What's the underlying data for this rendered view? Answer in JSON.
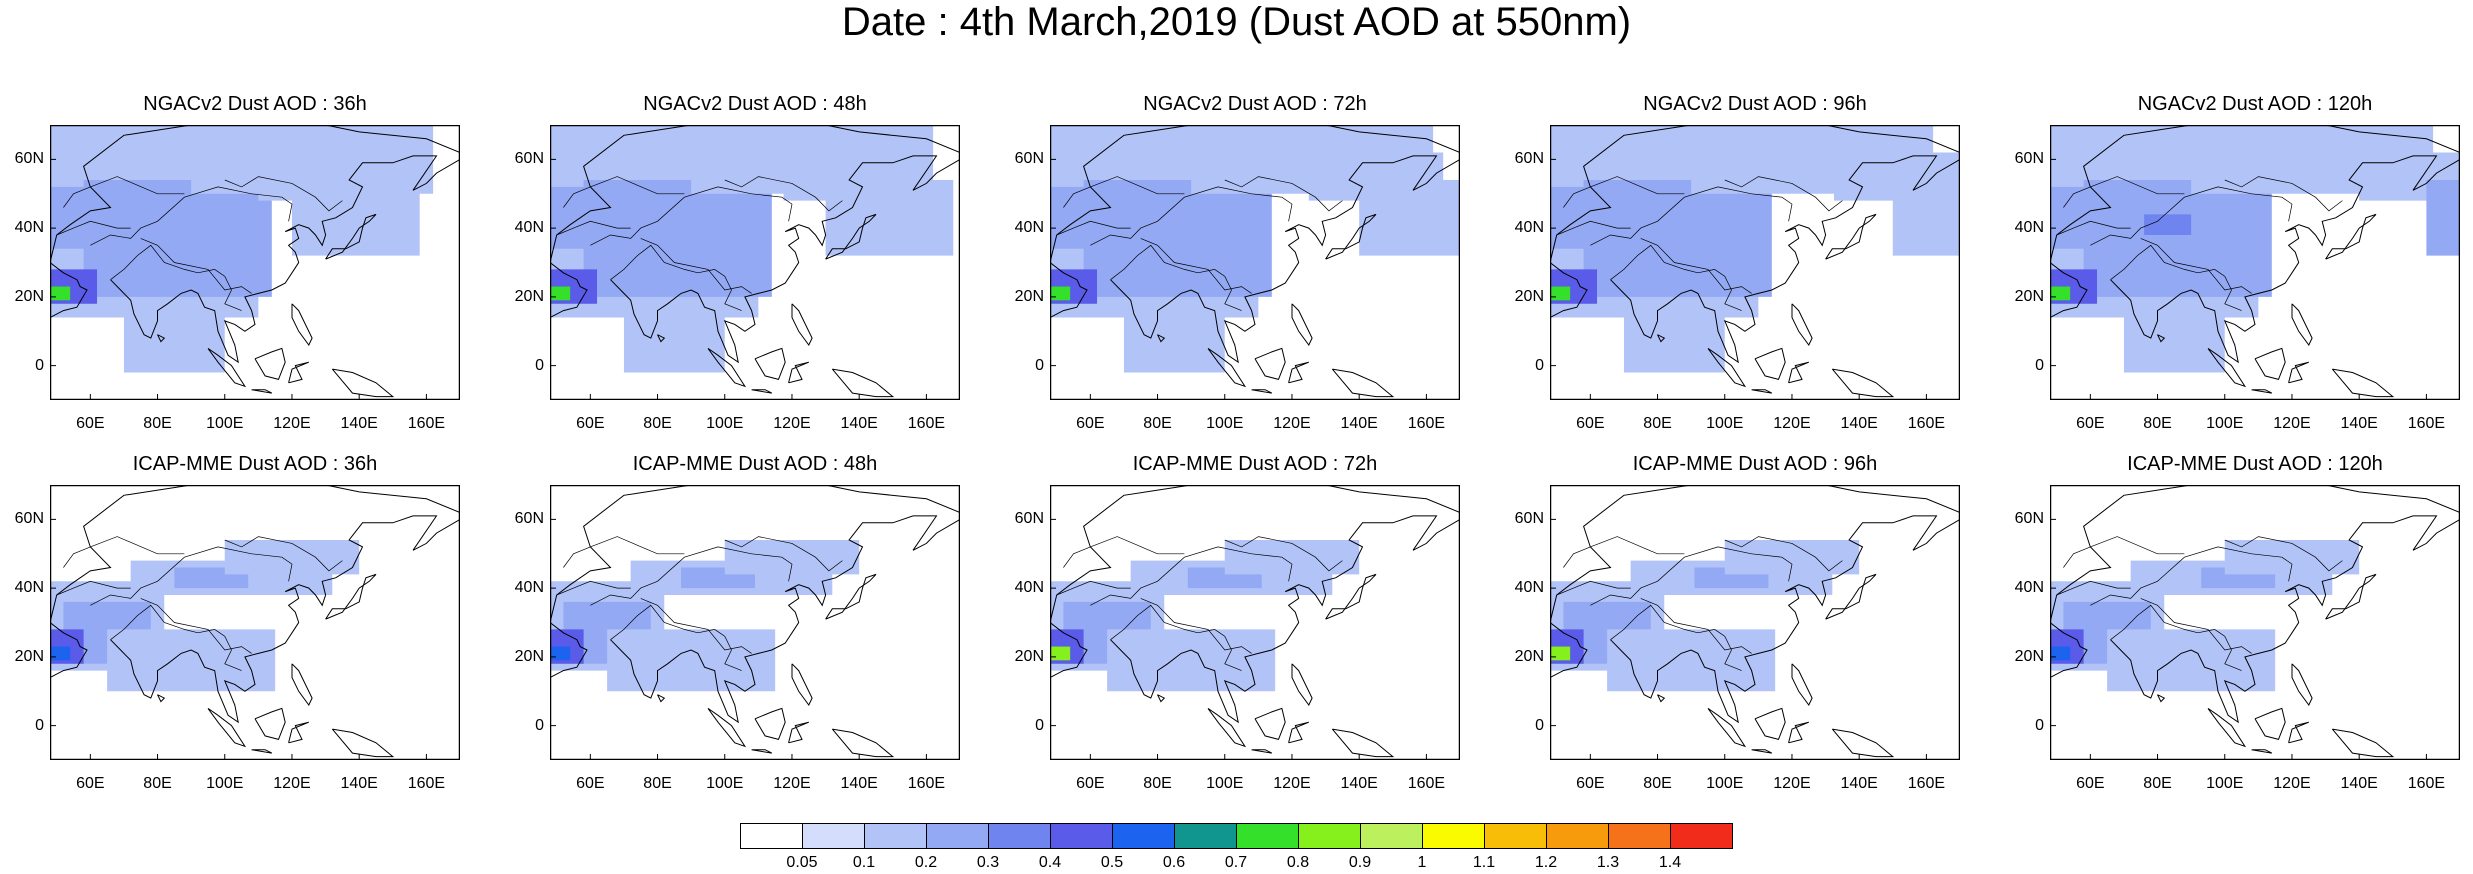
{
  "title": "Date : 4th March,2019 (Dust AOD at 550nm)",
  "rows": [
    {
      "model": "NGACv2",
      "panels": [
        {
          "label": "NGACv2 Dust AOD : 36h"
        },
        {
          "label": "NGACv2 Dust AOD : 48h"
        },
        {
          "label": "NGACv2 Dust AOD : 72h"
        },
        {
          "label": "NGACv2 Dust AOD : 96h"
        },
        {
          "label": "NGACv2 Dust AOD : 120h"
        }
      ]
    },
    {
      "model": "ICAP-MME",
      "panels": [
        {
          "label": "ICAP-MME Dust AOD : 36h"
        },
        {
          "label": "ICAP-MME Dust AOD : 48h"
        },
        {
          "label": "ICAP-MME Dust AOD : 72h"
        },
        {
          "label": "ICAP-MME Dust AOD : 96h"
        },
        {
          "label": "ICAP-MME Dust AOD : 120h"
        }
      ]
    }
  ],
  "lat_ticks": [
    "60N",
    "40N",
    "20N",
    "0"
  ],
  "lon_ticks": [
    "60E",
    "80E",
    "100E",
    "120E",
    "140E",
    "160E"
  ],
  "colorbar": {
    "labels": [
      "0.05",
      "0.1",
      "0.2",
      "0.3",
      "0.4",
      "0.5",
      "0.6",
      "0.7",
      "0.8",
      "0.9",
      "1",
      "1.1",
      "1.2",
      "1.3",
      "1.4"
    ],
    "colors": [
      "#ffffff",
      "#d4defc",
      "#b2c3f8",
      "#93a9f4",
      "#6f84ee",
      "#5a5be8",
      "#1c64f0",
      "#10968f",
      "#35e02b",
      "#86f01d",
      "#bcf05c",
      "#fbfb00",
      "#f8bd07",
      "#f79a0c",
      "#f5721a",
      "#f22c1a"
    ]
  }
}
